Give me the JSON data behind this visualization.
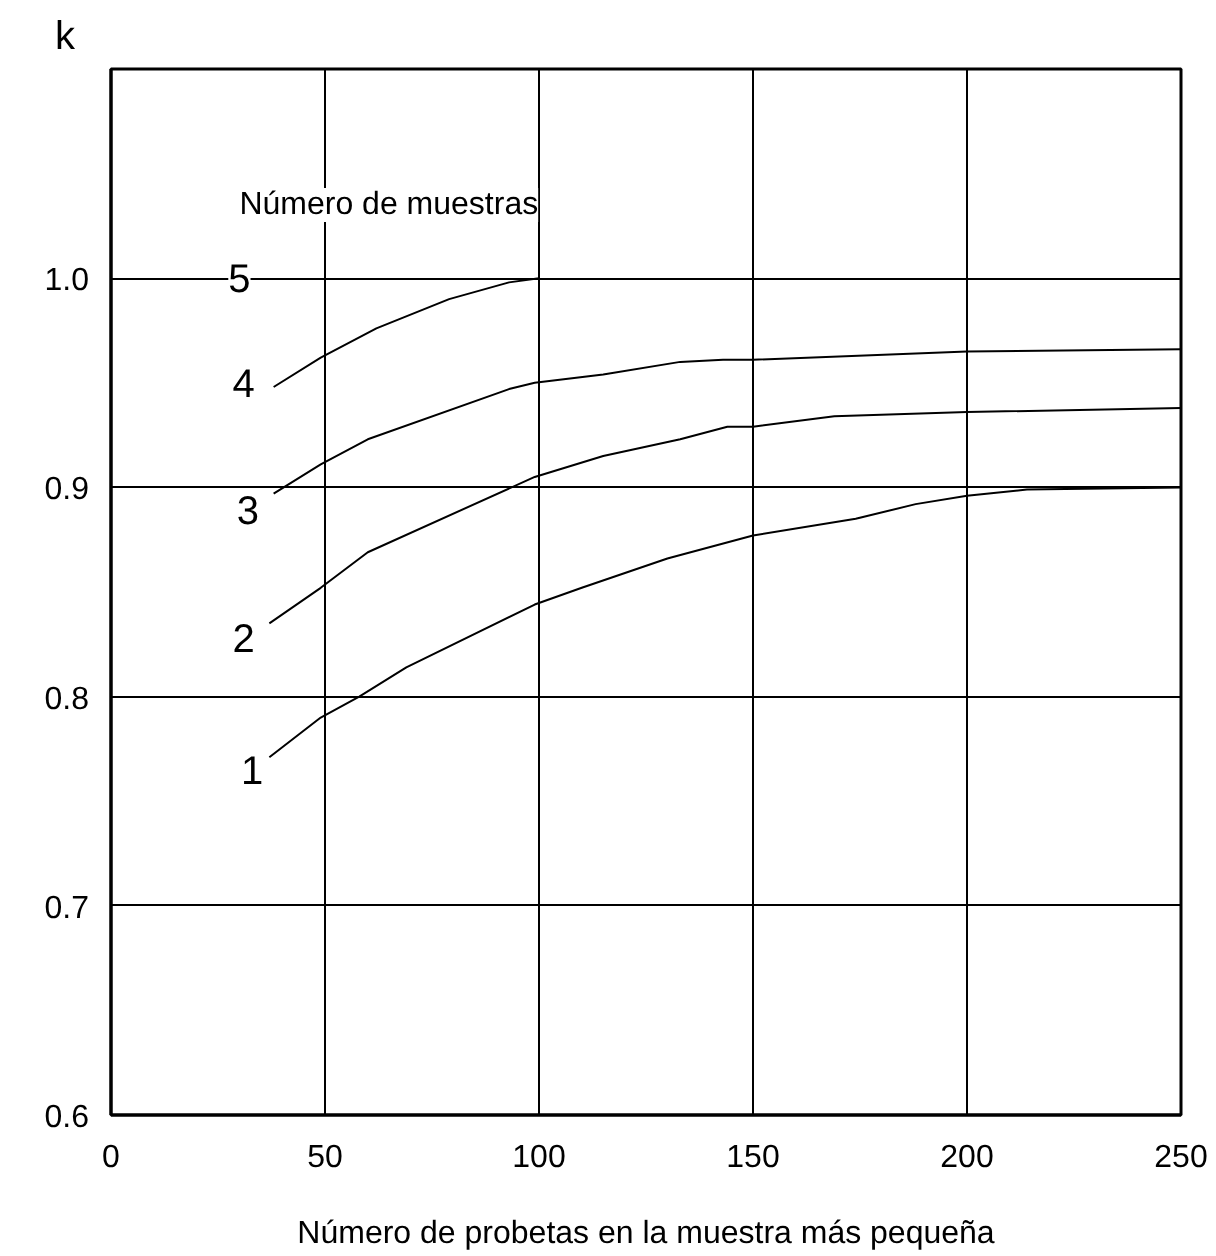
{
  "chart_data": {
    "type": "line",
    "xlabel": "Número de probetas en la muestra más pequeña",
    "ylabel": "k",
    "xlim": [
      0,
      250
    ],
    "xticks": [
      0,
      50,
      100,
      150,
      200,
      250
    ],
    "ylim": [
      0.6,
      1.1
    ],
    "yticks": [
      {
        "value": 0.6,
        "label": "0.6"
      },
      {
        "value": 0.7,
        "label": "0.7"
      },
      {
        "value": 0.8,
        "label": "0.8"
      },
      {
        "value": 0.9,
        "label": "0.9"
      },
      {
        "value": 1.0,
        "label": "1.0"
      }
    ],
    "grid": true,
    "marker": "none",
    "line_style": "solid",
    "series": [
      {
        "color": "#000000",
        "x": [
          38,
          49,
          62,
          79,
          93,
          100
        ],
        "values": [
          0.948,
          0.962,
          0.976,
          0.99,
          0.998,
          1.0
        ]
      },
      {
        "color": "#000000",
        "x": [
          38,
          49,
          60,
          93,
          99,
          115,
          133,
          143,
          150,
          200,
          250
        ],
        "values": [
          0.897,
          0.911,
          0.923,
          0.947,
          0.95,
          0.954,
          0.96,
          0.961,
          0.961,
          0.965,
          0.966
        ]
      },
      {
        "color": "#000000",
        "x": [
          37,
          49,
          60,
          99,
          115,
          133,
          144,
          150,
          169,
          200,
          250
        ],
        "values": [
          0.835,
          0.852,
          0.869,
          0.905,
          0.915,
          0.923,
          0.929,
          0.929,
          0.934,
          0.936,
          0.938
        ]
      },
      {
        "color": "#000000",
        "x": [
          37,
          49,
          58,
          69,
          99,
          110,
          130,
          150,
          174,
          188,
          200,
          214,
          250
        ],
        "values": [
          0.771,
          0.79,
          0.8,
          0.814,
          0.844,
          0.852,
          0.866,
          0.877,
          0.885,
          0.892,
          0.896,
          0.899,
          0.9
        ]
      }
    ],
    "annotations": [
      "Número de muestras",
      {
        "text": "5",
        "x": 30,
        "y": 1.0
      },
      {
        "text": "4",
        "x": 31,
        "y": 0.95
      },
      {
        "text": "3",
        "x": 32,
        "y": 0.889
      },
      {
        "text": "2",
        "x": 31,
        "y": 0.828
      },
      {
        "text": "1",
        "x": 33,
        "y": 0.765
      }
    ]
  }
}
